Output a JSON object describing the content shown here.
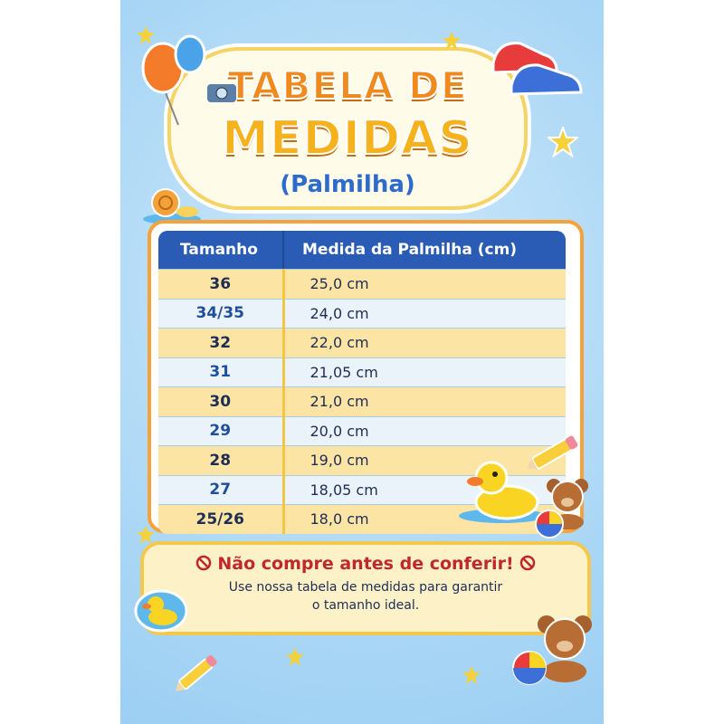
{
  "title": {
    "line1": "TABELA DE",
    "line2": "MEDIDAS",
    "subtitle": "(Palmilha)"
  },
  "table": {
    "headers": [
      "Tamanho",
      "Medida da Palmilha (cm)"
    ],
    "rows": [
      {
        "size": "36",
        "measure": "25,0 cm"
      },
      {
        "size": "34/35",
        "measure": "24,0 cm"
      },
      {
        "size": "32",
        "measure": "22,0 cm"
      },
      {
        "size": "31",
        "measure": "21,05 cm"
      },
      {
        "size": "30",
        "measure": "21,0 cm"
      },
      {
        "size": "29",
        "measure": "20,0 cm"
      },
      {
        "size": "28",
        "measure": "19,0 cm"
      },
      {
        "size": "27",
        "measure": "18,05 cm"
      },
      {
        "size": "25/26",
        "measure": "18,0 cm"
      }
    ]
  },
  "notice": {
    "heading": "Não compre antes de conferir!",
    "body_line1": "Use nossa tabela de medidas para garantir",
    "body_line2": "o tamanho ideal.",
    "icon": "prohibited-icon"
  },
  "colors": {
    "header": "#2a5bb5",
    "row_odd": "#fbe4a4",
    "row_even": "#eaf3fa",
    "notice_heading": "#c0282b",
    "background": "#a9d6f5"
  },
  "decorations": [
    "balloon-icon",
    "camera-icon",
    "sneakers-icon",
    "snail-icon",
    "star-icon",
    "pencil-icon",
    "rubber-duck-icon",
    "teddy-bear-icon",
    "ball-icon"
  ]
}
